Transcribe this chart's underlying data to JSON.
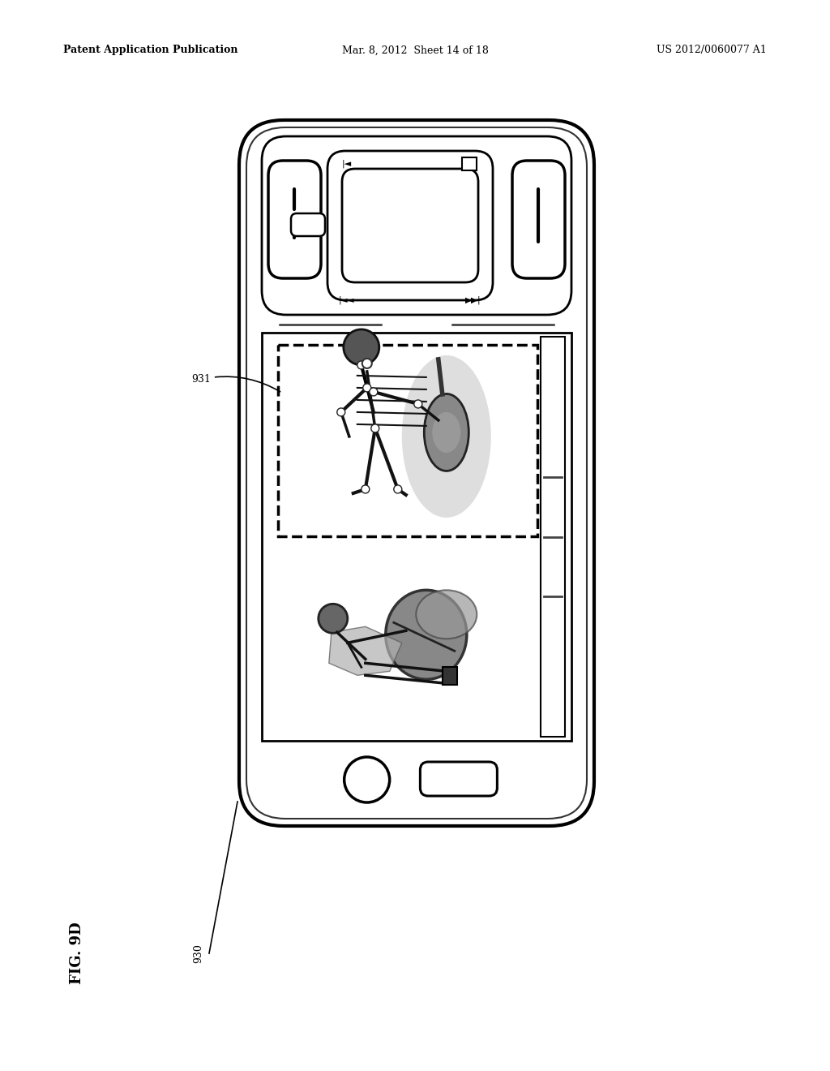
{
  "bg_color": "#ffffff",
  "header_left": "Patent Application Publication",
  "header_mid": "Mar. 8, 2012  Sheet 14 of 18",
  "header_right": "US 2012/0060077 A1",
  "fig_label": "FIG. 9D",
  "ref_930": "930",
  "ref_931": "931"
}
